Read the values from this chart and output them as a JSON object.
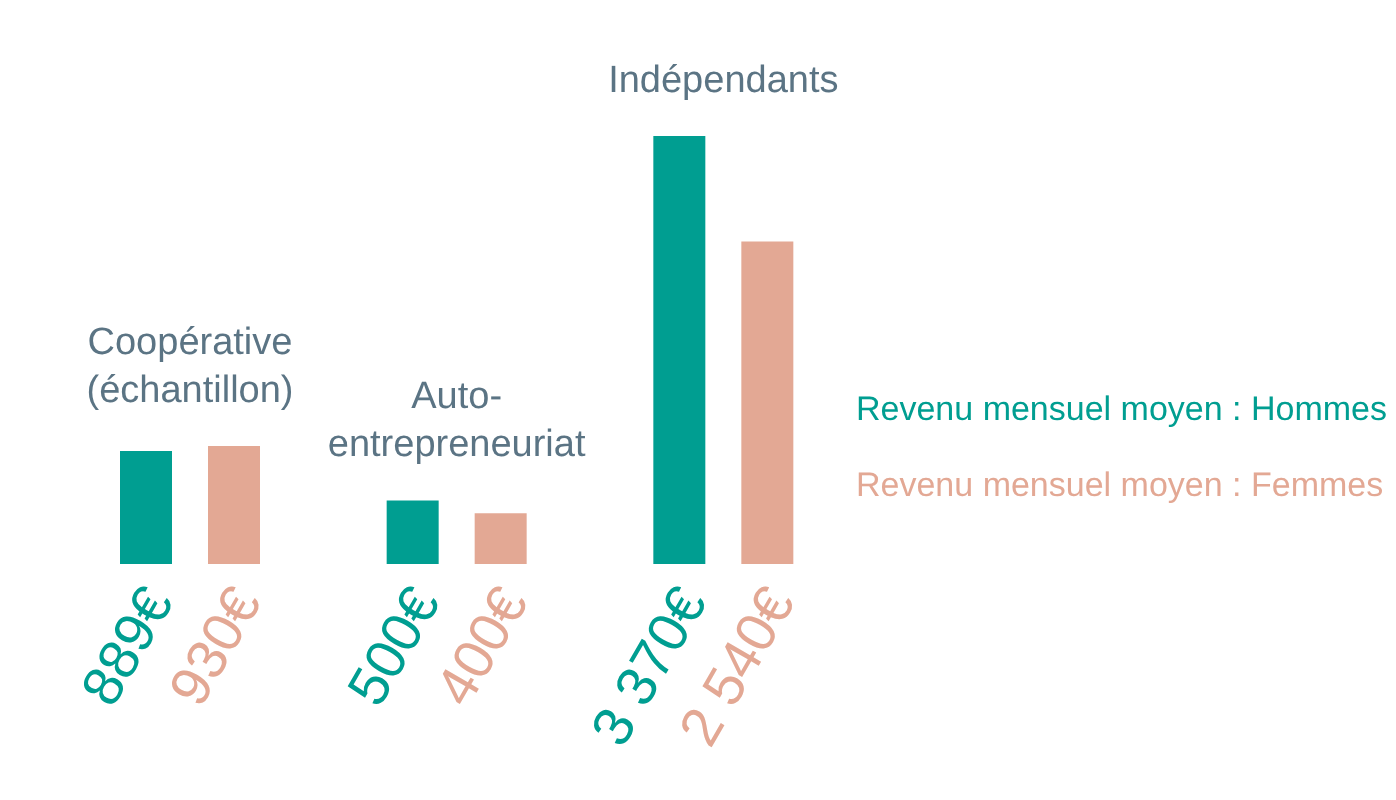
{
  "chart_data": {
    "type": "bar",
    "categories": [
      "Coopérative (échantillon)",
      "Auto-entrepreneuriat",
      "Indépendants"
    ],
    "series": [
      {
        "name": "Revenu mensuel moyen : Hommes",
        "color": "#009e91",
        "values": [
          889,
          500,
          3370
        ],
        "value_labels": [
          "889€",
          "500€",
          "3 370€"
        ]
      },
      {
        "name": "Revenu mensuel moyen : Femmes",
        "color": "#e3a894",
        "values": [
          930,
          400,
          2540
        ],
        "value_labels": [
          "930€",
          "400€",
          "2 540€"
        ]
      }
    ],
    "legend": "right",
    "tick_labels": false
  }
}
